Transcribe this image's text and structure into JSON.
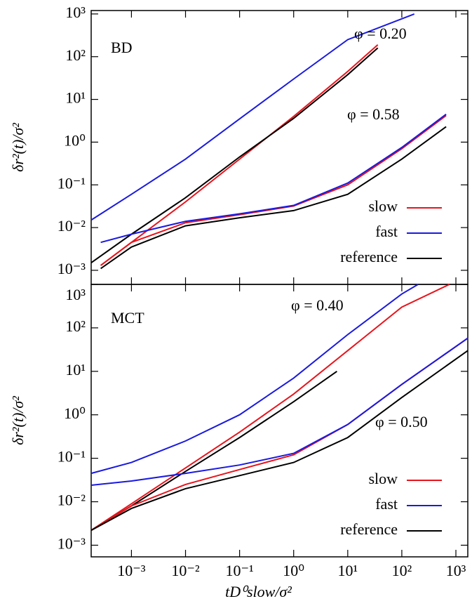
{
  "chart_data": [
    {
      "type": "line",
      "y_label": "δr²(t)/σ²",
      "log_x": true,
      "log_y": true,
      "xlim": [
        0.00018,
        1660
      ],
      "ylim": [
        0.000468,
        1202
      ],
      "yticks": [
        {
          "value": 0.001,
          "label": "10⁻³"
        },
        {
          "value": 0.01,
          "label": "10⁻²"
        },
        {
          "value": 0.1,
          "label": "10⁻¹"
        },
        {
          "value": 1,
          "label": "10⁰"
        },
        {
          "value": 10,
          "label": "10¹"
        },
        {
          "value": 100,
          "label": "10²"
        },
        {
          "value": 1000,
          "label": "10³"
        }
      ],
      "annotations": [
        "BD",
        "φ = 0.20",
        "φ = 0.58"
      ],
      "legend": "lower right",
      "series": [
        {
          "name": "slow",
          "color": "#e8141c",
          "x": [
            0.00027,
            0.001,
            0.01,
            0.1,
            1,
            10,
            36
          ],
          "values": [
            0.0013,
            0.0045,
            0.04,
            0.4,
            4,
            45,
            190
          ]
        },
        {
          "name": "fast",
          "color": "#1a1adf",
          "x": [
            0.00018,
            0.001,
            0.01,
            0.1,
            1,
            10,
            170
          ],
          "values": [
            0.015,
            0.06,
            0.4,
            3.5,
            30,
            250,
            1000
          ]
        },
        {
          "name": "reference",
          "color": "#000000",
          "x": [
            0.00018,
            0.001,
            0.01,
            0.1,
            1,
            10,
            36
          ],
          "values": [
            0.0015,
            0.007,
            0.05,
            0.45,
            3.6,
            38,
            160
          ]
        },
        {
          "name": "slow",
          "color": "#e8141c",
          "x": [
            0.00027,
            0.001,
            0.01,
            0.1,
            1,
            10,
            100,
            660
          ],
          "values": [
            0.0013,
            0.0045,
            0.013,
            0.02,
            0.032,
            0.1,
            0.7,
            4.2
          ]
        },
        {
          "name": "fast",
          "color": "#1a1adf",
          "x": [
            0.00027,
            0.001,
            0.01,
            0.1,
            1,
            10,
            100,
            660
          ],
          "values": [
            0.0045,
            0.007,
            0.014,
            0.021,
            0.033,
            0.11,
            0.75,
            4.5
          ]
        },
        {
          "name": "reference",
          "color": "#000000",
          "x": [
            0.00027,
            0.001,
            0.01,
            0.1,
            1,
            10,
            100,
            660
          ],
          "values": [
            0.0011,
            0.0035,
            0.011,
            0.017,
            0.025,
            0.06,
            0.4,
            2.3
          ]
        }
      ]
    },
    {
      "type": "line",
      "y_label": "δr²(t)/σ²",
      "x_label": "tD⁰slow/σ²",
      "log_x": true,
      "log_y": true,
      "xlim": [
        0.00018,
        1660
      ],
      "ylim": [
        0.00054,
        1000
      ],
      "xticks": [
        {
          "value": 0.001,
          "label": "10⁻³"
        },
        {
          "value": 0.01,
          "label": "10⁻²"
        },
        {
          "value": 0.1,
          "label": "10⁻¹"
        },
        {
          "value": 1,
          "label": "10⁰"
        },
        {
          "value": 10,
          "label": "10¹"
        },
        {
          "value": 100,
          "label": "10²"
        },
        {
          "value": 1000,
          "label": "10³"
        }
      ],
      "yticks": [
        {
          "value": 0.001,
          "label": "10⁻³"
        },
        {
          "value": 0.01,
          "label": "10⁻²"
        },
        {
          "value": 0.1,
          "label": "10⁻¹"
        },
        {
          "value": 1,
          "label": "10⁰"
        },
        {
          "value": 10,
          "label": "10¹"
        },
        {
          "value": 100,
          "label": "10²"
        },
        {
          "value": 1000,
          "label": "10³"
        }
      ],
      "annotations": [
        "MCT",
        "φ = 0.40",
        "φ = 0.50"
      ],
      "legend": "lower right",
      "series": [
        {
          "name": "slow",
          "color": "#e8141c",
          "x": [
            0.00018,
            0.001,
            0.01,
            0.1,
            1,
            10,
            100,
            760
          ],
          "values": [
            0.0022,
            0.009,
            0.06,
            0.4,
            3,
            30,
            300,
            1000
          ]
        },
        {
          "name": "fast",
          "color": "#1a1adf",
          "x": [
            0.00018,
            0.001,
            0.01,
            0.1,
            1,
            10,
            100,
            200
          ],
          "values": [
            0.045,
            0.08,
            0.25,
            1,
            7,
            70,
            600,
            1000
          ]
        },
        {
          "name": "reference",
          "color": "#000000",
          "x": [
            0.00018,
            0.001,
            0.01,
            0.1,
            1,
            6.3
          ],
          "values": [
            0.0022,
            0.008,
            0.05,
            0.3,
            2,
            10
          ]
        },
        {
          "name": "slow",
          "color": "#e8141c",
          "x": [
            0.00018,
            0.001,
            0.01,
            0.1,
            1,
            10,
            100,
            1660
          ],
          "values": [
            0.0022,
            0.008,
            0.025,
            0.055,
            0.12,
            0.6,
            5,
            58
          ]
        },
        {
          "name": "fast",
          "color": "#1a1adf",
          "x": [
            0.00018,
            0.001,
            0.01,
            0.1,
            1,
            10,
            100,
            1660
          ],
          "values": [
            0.024,
            0.03,
            0.045,
            0.07,
            0.13,
            0.6,
            5,
            58
          ]
        },
        {
          "name": "reference",
          "color": "#000000",
          "x": [
            0.00018,
            0.001,
            0.01,
            0.1,
            1,
            10,
            100,
            1660
          ],
          "values": [
            0.0022,
            0.007,
            0.02,
            0.04,
            0.08,
            0.3,
            2.5,
            30
          ]
        }
      ]
    }
  ]
}
